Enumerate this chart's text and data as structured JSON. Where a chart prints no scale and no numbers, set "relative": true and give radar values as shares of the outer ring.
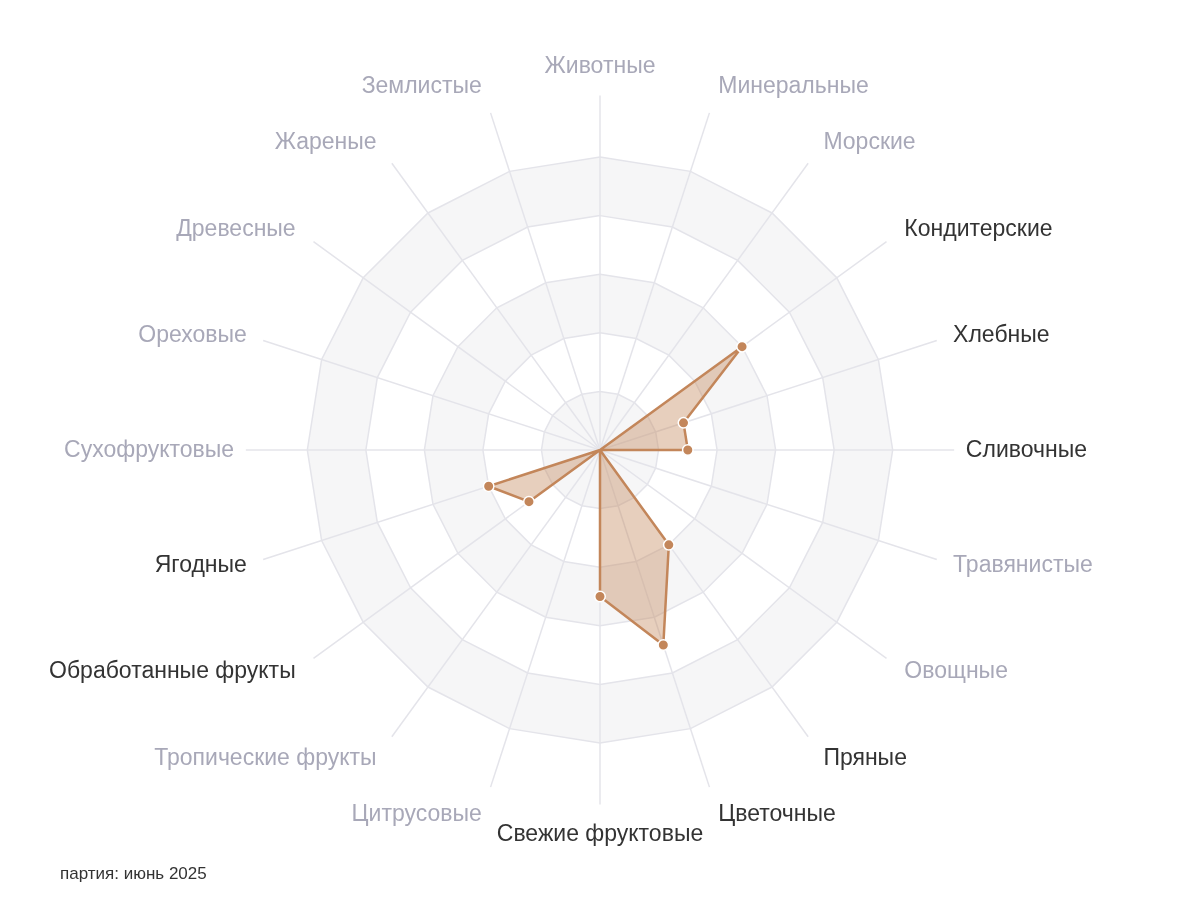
{
  "chart_data": {
    "type": "radar",
    "relative": true,
    "grid": true,
    "marker": "circle",
    "categories": [
      "Животные",
      "Минеральные",
      "Морские",
      "Кондитерские",
      "Хлебные",
      "Сливочные",
      "Травянистые",
      "Овощные",
      "Пряные",
      "Цветочные",
      "Свежие фруктовые",
      "Цитрусовые",
      "Тропические фрукты",
      "Обработанные фрукты",
      "Ягодные",
      "Сухофруктовые",
      "Ореховые",
      "Древесные",
      "Жареные",
      "Землистые"
    ],
    "series": [
      {
        "color": "#c3865a",
        "values": [
          0,
          0,
          0,
          0.6,
          0.3,
          0.3,
          0,
          0,
          0.4,
          0.7,
          0.5,
          0,
          0,
          0.3,
          0.4,
          0,
          0,
          0,
          0,
          0
        ]
      }
    ],
    "annotations": [
      "партия: июнь 2025"
    ]
  }
}
